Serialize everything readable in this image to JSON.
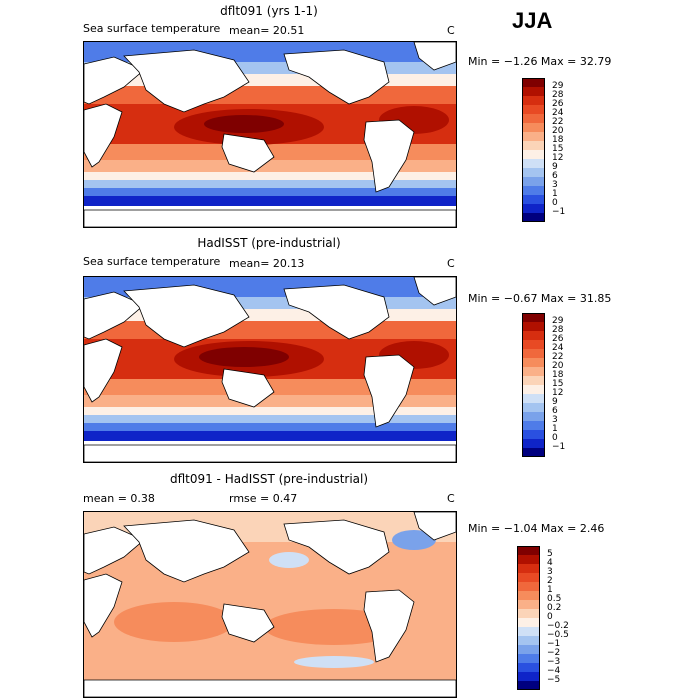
{
  "season": "JJA",
  "panels": [
    {
      "title": "dflt091 (yrs 1-1)",
      "varname": "Sea surface temperature",
      "stat1": "mean=  20.51",
      "stat2": "",
      "units": "C",
      "minmax": "Min =  −1.26  Max =  32.79",
      "legend": [
        "29",
        "28",
        "26",
        "24",
        "22",
        "20",
        "18",
        "15",
        "12",
        "9",
        "6",
        "3",
        "1",
        "0",
        "−1"
      ],
      "colors": [
        "#7f0000",
        "#b01000",
        "#d62e10",
        "#e84a24",
        "#f0683c",
        "#f68c5c",
        "#fab088",
        "#fbd4b8",
        "#fdf0e6",
        "#cfe0f6",
        "#a4c4f0",
        "#7aa2ea",
        "#4f7ce8",
        "#2a50e0",
        "#0f24c8",
        "#00007f"
      ]
    },
    {
      "title": "HadISST (pre-industrial)",
      "varname": "Sea surface temperature",
      "stat1": "mean=  20.13",
      "stat2": "",
      "units": "C",
      "minmax": "Min =  −0.67  Max =  31.85",
      "legend": [
        "29",
        "28",
        "26",
        "24",
        "22",
        "20",
        "18",
        "15",
        "12",
        "9",
        "6",
        "3",
        "1",
        "0",
        "−1"
      ],
      "colors": [
        "#7f0000",
        "#b01000",
        "#d62e10",
        "#e84a24",
        "#f0683c",
        "#f68c5c",
        "#fab088",
        "#fbd4b8",
        "#fdf0e6",
        "#cfe0f6",
        "#a4c4f0",
        "#7aa2ea",
        "#4f7ce8",
        "#2a50e0",
        "#0f24c8",
        "#00007f"
      ]
    },
    {
      "title": "dflt091 - HadISST (pre-industrial)",
      "varname": "",
      "stat1": "mean =   0.38",
      "stat2": "rmse =   0.47",
      "units": "C",
      "minmax": "Min =  −1.04  Max =   2.46",
      "legend": [
        "5",
        "4",
        "3",
        "2",
        "1",
        "0.5",
        "0.2",
        "0",
        "−0.2",
        "−0.5",
        "−1",
        "−2",
        "−3",
        "−4",
        "−5"
      ],
      "colors": [
        "#7f0000",
        "#b01000",
        "#d62e10",
        "#e84a24",
        "#f0683c",
        "#f68c5c",
        "#fab088",
        "#fbd4b8",
        "#fdf0e6",
        "#cfe0f6",
        "#a4c4f0",
        "#7aa2ea",
        "#4f7ce8",
        "#2a50e0",
        "#0f24c8",
        "#00007f"
      ]
    }
  ]
}
